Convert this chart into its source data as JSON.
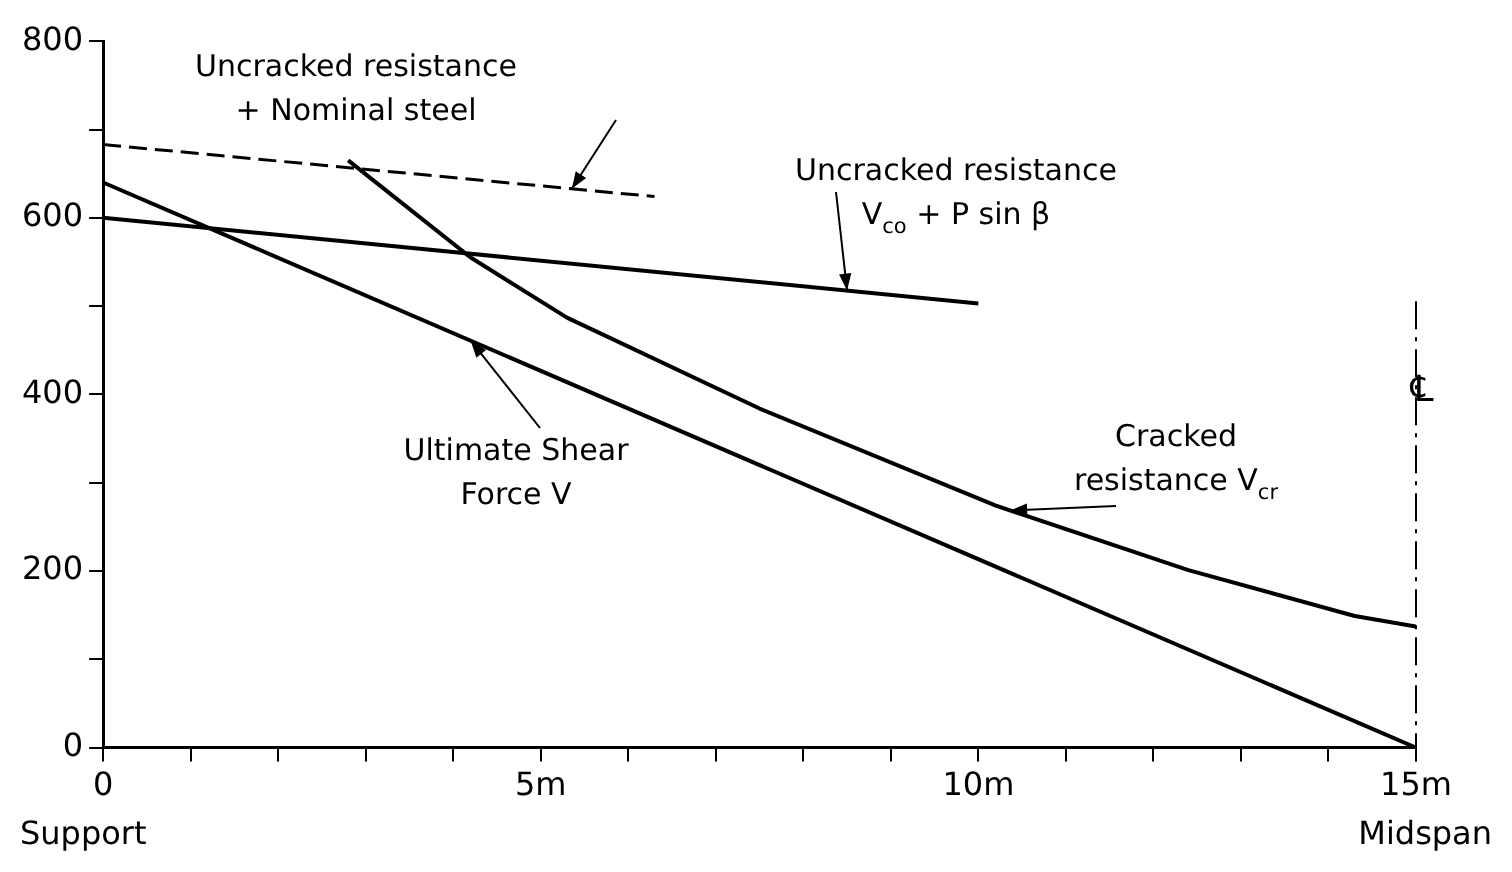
{
  "chart_data": {
    "type": "line",
    "xlim": [
      0,
      15
    ],
    "xticks": [
      0,
      {
        "value": 1,
        "label": null
      },
      {
        "value": 2,
        "label": null
      },
      {
        "value": 3,
        "label": null
      },
      {
        "value": 4,
        "label": null
      },
      {
        "value": 5,
        "label": "5m"
      },
      {
        "value": 6,
        "label": null
      },
      {
        "value": 7,
        "label": null
      },
      {
        "value": 8,
        "label": null
      },
      {
        "value": 9,
        "label": null
      },
      {
        "value": 10,
        "label": "10m"
      },
      {
        "value": 11,
        "label": null
      },
      {
        "value": 12,
        "label": null
      },
      {
        "value": 13,
        "label": null
      },
      {
        "value": 14,
        "label": null
      },
      {
        "value": 15,
        "label": "15m"
      }
    ],
    "ylim": [
      0,
      800
    ],
    "yticks": [
      0,
      {
        "value": 100,
        "label": null
      },
      200,
      {
        "value": 300,
        "label": null
      },
      400,
      {
        "value": 500,
        "label": null
      },
      600,
      {
        "value": 700,
        "label": null
      },
      800
    ],
    "grid": false,
    "legend": false,
    "marker": "none",
    "series": [
      {
        "name": "Ultimate Shear Force V",
        "color": "#000000",
        "x": [
          0,
          15
        ],
        "values": [
          640,
          0
        ]
      },
      {
        "name": "Uncracked resistance + Nominal steel",
        "color": "#000000",
        "line_style": "dashed",
        "x": [
          0,
          6.3
        ],
        "values": [
          683,
          624
        ]
      },
      {
        "name": "Uncracked resistance V$_{co}$ + P sin β",
        "color": "#000000",
        "x": [
          0,
          10
        ],
        "values": [
          600,
          503
        ]
      },
      {
        "name": "Cracked resistance V$_{cr}$",
        "color": "#000000",
        "x": [
          2.8,
          4.2,
          5.3,
          7.5,
          10.2,
          12.4,
          14.3,
          15
        ],
        "values": [
          665,
          555,
          487,
          384,
          274,
          201,
          149,
          137
        ]
      }
    ],
    "ref_lines": [
      {
        "axis": "x",
        "value": 15,
        "label": "℄",
        "line_style": "dashed"
      }
    ],
    "annotations": [
      "Support",
      "Midspan"
    ]
  }
}
